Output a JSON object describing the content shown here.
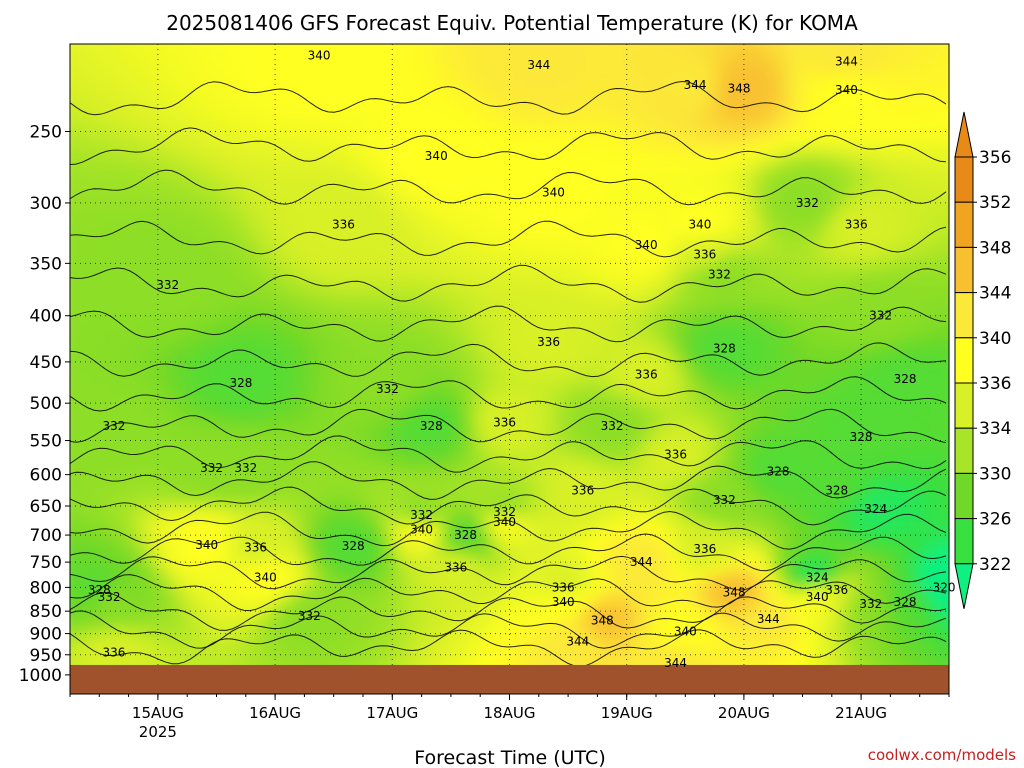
{
  "chart_data": {
    "type": "heatmap",
    "title": "2025081406 GFS Forecast Equiv. Potential Temperature (K) for KOMA",
    "xlabel": "Forecast Time (UTC)",
    "ylabel": "",
    "credit": "coolwx.com/models",
    "x_ticks": [
      {
        "label": "15AUG",
        "sub": "2025",
        "hours": 18
      },
      {
        "label": "16AUG",
        "sub": "",
        "hours": 42
      },
      {
        "label": "17AUG",
        "sub": "",
        "hours": 66
      },
      {
        "label": "18AUG",
        "sub": "",
        "hours": 90
      },
      {
        "label": "19AUG",
        "sub": "",
        "hours": 114
      },
      {
        "label": "20AUG",
        "sub": "",
        "hours": 138
      },
      {
        "label": "21AUG",
        "sub": "",
        "hours": 162
      }
    ],
    "xlim_hours": [
      0,
      180
    ],
    "y_axis": "pressure (log scale, inverted)",
    "y_ticks": [
      250,
      300,
      350,
      400,
      450,
      500,
      550,
      600,
      650,
      700,
      750,
      800,
      850,
      900,
      950,
      1000
    ],
    "ylim_hpa": [
      1050,
      200
    ],
    "ground_hpa": 975,
    "grid": true,
    "colorbar": {
      "position": "right",
      "labels": [
        356,
        352,
        348,
        344,
        340,
        336,
        334,
        330,
        326,
        322
      ],
      "colors": [
        "#e88a18",
        "#f0a420",
        "#f8c030",
        "#fce838",
        "#ffff20",
        "#d8f028",
        "#a8e428",
        "#70d828",
        "#38e040",
        "#10f080"
      ]
    },
    "ground_color": "#a0522d",
    "contour_labels": [
      {
        "t": "340",
        "h": 51,
        "p": 206
      },
      {
        "t": "344",
        "h": 96,
        "p": 211
      },
      {
        "t": "344",
        "h": 128,
        "p": 222
      },
      {
        "t": "348",
        "h": 137,
        "p": 224
      },
      {
        "t": "344",
        "h": 159,
        "p": 209
      },
      {
        "t": "340",
        "h": 159,
        "p": 225
      },
      {
        "t": "340",
        "h": 75,
        "p": 266
      },
      {
        "t": "340",
        "h": 99,
        "p": 292
      },
      {
        "t": "336",
        "h": 56,
        "p": 317
      },
      {
        "t": "340",
        "h": 129,
        "p": 317
      },
      {
        "t": "340",
        "h": 118,
        "p": 334
      },
      {
        "t": "336",
        "h": 130,
        "p": 342
      },
      {
        "t": "332",
        "h": 151,
        "p": 300
      },
      {
        "t": "336",
        "h": 161,
        "p": 317
      },
      {
        "t": "332",
        "h": 133,
        "p": 360
      },
      {
        "t": "332",
        "h": 20,
        "p": 370
      },
      {
        "t": "332",
        "h": 166,
        "p": 400
      },
      {
        "t": "336",
        "h": 98,
        "p": 428
      },
      {
        "t": "328",
        "h": 134,
        "p": 435
      },
      {
        "t": "336",
        "h": 118,
        "p": 465
      },
      {
        "t": "328",
        "h": 35,
        "p": 475
      },
      {
        "t": "332",
        "h": 65,
        "p": 482
      },
      {
        "t": "328",
        "h": 171,
        "p": 470
      },
      {
        "t": "332",
        "h": 9,
        "p": 530
      },
      {
        "t": "328",
        "h": 74,
        "p": 530
      },
      {
        "t": "336",
        "h": 89,
        "p": 525
      },
      {
        "t": "332",
        "h": 111,
        "p": 530
      },
      {
        "t": "328",
        "h": 162,
        "p": 545
      },
      {
        "t": "336",
        "h": 124,
        "p": 570
      },
      {
        "t": "332",
        "h": 29,
        "p": 590
      },
      {
        "t": "332",
        "h": 36,
        "p": 590
      },
      {
        "t": "328",
        "h": 145,
        "p": 595
      },
      {
        "t": "336",
        "h": 105,
        "p": 625
      },
      {
        "t": "328",
        "h": 157,
        "p": 625
      },
      {
        "t": "332",
        "h": 134,
        "p": 640
      },
      {
        "t": "324",
        "h": 165,
        "p": 655
      },
      {
        "t": "332",
        "h": 72,
        "p": 665
      },
      {
        "t": "332",
        "h": 89,
        "p": 660
      },
      {
        "t": "340",
        "h": 89,
        "p": 677
      },
      {
        "t": "340",
        "h": 72,
        "p": 690
      },
      {
        "t": "328",
        "h": 81,
        "p": 700
      },
      {
        "t": "340",
        "h": 28,
        "p": 718
      },
      {
        "t": "336",
        "h": 38,
        "p": 723
      },
      {
        "t": "328",
        "h": 58,
        "p": 720
      },
      {
        "t": "336",
        "h": 130,
        "p": 725
      },
      {
        "t": "344",
        "h": 117,
        "p": 750
      },
      {
        "t": "336",
        "h": 79,
        "p": 760
      },
      {
        "t": "340",
        "h": 40,
        "p": 780
      },
      {
        "t": "324",
        "h": 153,
        "p": 780
      },
      {
        "t": "336",
        "h": 101,
        "p": 800
      },
      {
        "t": "336",
        "h": 157,
        "p": 805
      },
      {
        "t": "348",
        "h": 136,
        "p": 810
      },
      {
        "t": "328",
        "h": 6,
        "p": 805
      },
      {
        "t": "340",
        "h": 153,
        "p": 820
      },
      {
        "t": "332",
        "h": 8,
        "p": 820
      },
      {
        "t": "340",
        "h": 101,
        "p": 830
      },
      {
        "t": "332",
        "h": 164,
        "p": 835
      },
      {
        "t": "328",
        "h": 171,
        "p": 830
      },
      {
        "t": "320",
        "h": 179,
        "p": 800
      },
      {
        "t": "332",
        "h": 49,
        "p": 860
      },
      {
        "t": "348",
        "h": 109,
        "p": 870
      },
      {
        "t": "344",
        "h": 143,
        "p": 867
      },
      {
        "t": "340",
        "h": 126,
        "p": 895
      },
      {
        "t": "344",
        "h": 104,
        "p": 918
      },
      {
        "t": "336",
        "h": 9,
        "p": 945
      },
      {
        "t": "344",
        "h": 124,
        "p": 970
      }
    ]
  }
}
